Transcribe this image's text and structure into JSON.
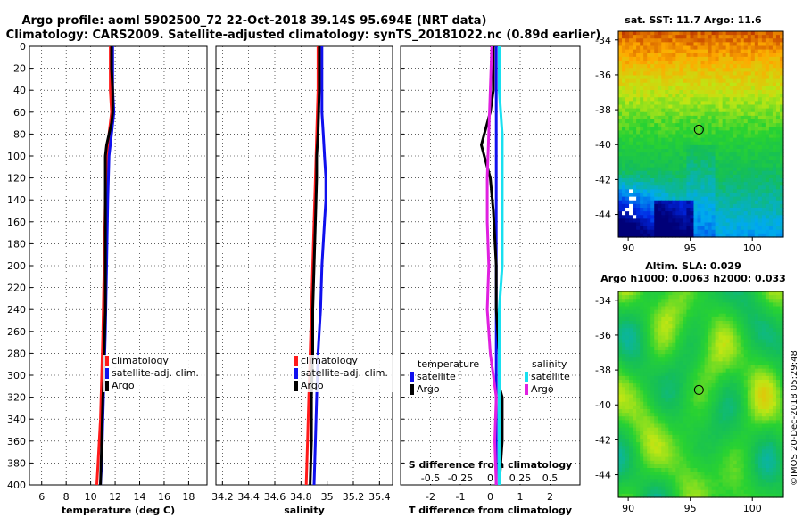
{
  "header": {
    "line1": "Argo profile: aoml 5902500_72 22-Oct-2018 39.14S 95.694E (NRT data)",
    "line2": "Climatology: CARS2009. Satellite-adjusted climatology: synTS_20181022.nc (0.89d earlier)"
  },
  "colors": {
    "climatology": "#ff1a1a",
    "satellite_adj": "#1010ee",
    "argo": "#000000",
    "sal_satellite": "#18e0f0",
    "sal_argo": "#e020e0"
  },
  "depth_axis": {
    "ticks": [
      "0",
      "20",
      "40",
      "60",
      "80",
      "100",
      "120",
      "140",
      "160",
      "180",
      "200",
      "220",
      "240",
      "260",
      "280",
      "300",
      "320",
      "340",
      "360",
      "380",
      "400"
    ]
  },
  "chart_data": [
    {
      "type": "line",
      "name": "temperature",
      "xlabel": "temperature (deg C)",
      "ylabel": "",
      "xlim": [
        5,
        19.5
      ],
      "ylim": [
        400,
        0
      ],
      "x_tick_values": [
        6,
        8,
        10,
        12,
        14,
        16,
        18
      ],
      "x_tick_labels": [
        "6",
        "8",
        "10",
        "12",
        "14",
        "16",
        "18"
      ],
      "legend": {
        "position": "lower-right",
        "entries": [
          "climatology",
          "satellite-adj. clim.",
          "Argo"
        ]
      },
      "series": [
        {
          "name": "climatology",
          "color": "#ff1a1a",
          "depth": [
            0,
            20,
            40,
            60,
            80,
            100,
            140,
            200,
            260,
            300,
            340,
            380,
            400
          ],
          "values": [
            11.6,
            11.6,
            11.6,
            11.7,
            11.5,
            11.3,
            11.2,
            11.1,
            11.0,
            10.9,
            10.8,
            10.6,
            10.5
          ]
        },
        {
          "name": "satellite-adj. clim.",
          "color": "#1010ee",
          "depth": [
            0,
            20,
            40,
            60,
            80,
            100,
            140,
            200,
            260,
            300,
            340,
            380,
            400
          ],
          "values": [
            11.8,
            11.8,
            11.8,
            11.9,
            11.7,
            11.5,
            11.4,
            11.3,
            11.2,
            11.1,
            11.0,
            10.9,
            10.8
          ]
        },
        {
          "name": "Argo",
          "color": "#000000",
          "depth": [
            0,
            20,
            40,
            60,
            70,
            80,
            90,
            100,
            120,
            140,
            160,
            200,
            240,
            280,
            300,
            320,
            360,
            400
          ],
          "values": [
            11.7,
            11.7,
            11.8,
            11.8,
            11.7,
            11.5,
            11.3,
            11.2,
            11.2,
            11.2,
            11.2,
            11.2,
            11.2,
            11.1,
            11.1,
            11.0,
            10.9,
            10.8
          ]
        }
      ]
    },
    {
      "type": "line",
      "name": "salinity",
      "xlabel": "salinity",
      "ylabel": "",
      "xlim": [
        34.15,
        35.5
      ],
      "ylim": [
        400,
        0
      ],
      "x_tick_values": [
        34.2,
        34.4,
        34.6,
        34.8,
        35,
        35.2,
        35.4
      ],
      "x_tick_labels": [
        "34.2",
        "34.4",
        "34.6",
        "34.8",
        "35",
        "35.2",
        "35.4"
      ],
      "legend": {
        "position": "lower-right",
        "entries": [
          "climatology",
          "satellite-adj. clim.",
          "Argo"
        ]
      },
      "series": [
        {
          "name": "climatology",
          "color": "#ff1a1a",
          "depth": [
            0,
            40,
            80,
            120,
            160,
            200,
            240,
            280,
            320,
            360,
            400
          ],
          "values": [
            34.93,
            34.93,
            34.92,
            34.91,
            34.9,
            34.89,
            34.88,
            34.87,
            34.86,
            34.85,
            34.84
          ]
        },
        {
          "name": "satellite-adj. clim.",
          "color": "#1010ee",
          "depth": [
            0,
            20,
            40,
            60,
            80,
            100,
            120,
            140,
            160,
            200,
            240,
            280,
            320,
            360,
            400
          ],
          "values": [
            34.96,
            34.96,
            34.96,
            34.96,
            34.97,
            34.98,
            34.99,
            34.99,
            34.98,
            34.96,
            34.95,
            34.93,
            34.92,
            34.91,
            34.9
          ]
        },
        {
          "name": "Argo",
          "color": "#000000",
          "depth": [
            0,
            40,
            80,
            100,
            120,
            160,
            200,
            240,
            280,
            320,
            360,
            400
          ],
          "values": [
            34.94,
            34.94,
            34.93,
            34.92,
            34.92,
            34.91,
            34.9,
            34.89,
            34.89,
            34.88,
            34.88,
            34.87
          ]
        }
      ]
    },
    {
      "type": "line",
      "name": "difference from climatology",
      "xlabel": "T difference from climatology",
      "ylabel": "",
      "xlim": [
        -3,
        3
      ],
      "ylim": [
        400,
        0
      ],
      "x_tick_values": [
        -2,
        -1,
        0,
        1,
        2
      ],
      "x_tick_labels": [
        "-2",
        "-1",
        "0",
        "1",
        "2"
      ],
      "x2label": "S difference from climatology",
      "x2_tick_values": [
        -2,
        -1,
        0,
        1,
        2
      ],
      "x2_tick_labels": [
        "-0.5",
        "-0.25",
        "0",
        "0.25",
        "0.5"
      ],
      "legend": {
        "position": "lower-right",
        "temperature_title": "temperature",
        "salinity_title": "salinity",
        "entries": [
          "satellite",
          "Argo",
          "satellite",
          "Argo"
        ]
      },
      "series": [
        {
          "name": "temperature satellite",
          "color": "#1010ee",
          "depth": [
            0,
            60,
            100,
            160,
            200,
            240,
            280,
            320,
            360,
            400
          ],
          "values": [
            0.2,
            0.2,
            0.2,
            0.2,
            0.2,
            0.2,
            0.2,
            0.2,
            0.2,
            0.2
          ]
        },
        {
          "name": "temperature Argo",
          "color": "#000000",
          "depth": [
            0,
            40,
            60,
            70,
            80,
            90,
            100,
            120,
            150,
            200,
            240,
            280,
            300,
            310,
            320,
            360,
            400
          ],
          "values": [
            0.1,
            0.1,
            0.0,
            -0.1,
            -0.2,
            -0.3,
            -0.2,
            0.0,
            0.1,
            0.2,
            0.2,
            0.3,
            0.3,
            0.3,
            0.4,
            0.4,
            0.3
          ]
        },
        {
          "name": "salinity satellite",
          "color": "#18e0f0",
          "depth": [
            0,
            40,
            80,
            120,
            160,
            200,
            240,
            280,
            320,
            360,
            400
          ],
          "values": [
            0.3,
            0.3,
            0.4,
            0.4,
            0.4,
            0.4,
            0.3,
            0.3,
            0.3,
            0.3,
            0.3
          ]
        },
        {
          "name": "salinity Argo",
          "color": "#e020e0",
          "depth": [
            0,
            40,
            80,
            120,
            160,
            200,
            240,
            280,
            300,
            320,
            360,
            400
          ],
          "values": [
            0.05,
            0.0,
            -0.05,
            -0.1,
            -0.1,
            -0.05,
            -0.1,
            0.0,
            0.1,
            0.2,
            0.15,
            0.2
          ]
        }
      ]
    },
    {
      "type": "heatmap",
      "name": "sst map",
      "title": "sat. SST: 11.7 Argo: 11.6",
      "x_tick_labels": [
        "90",
        "95",
        "100"
      ],
      "y_tick_labels": [
        "-34",
        "-36",
        "-38",
        "-40",
        "-42",
        "-44"
      ],
      "xlim": [
        89.2,
        102.5
      ],
      "ylim": [
        -45.3,
        -33.5
      ],
      "argo_position": {
        "lon": 95.694,
        "lat": -39.14
      }
    },
    {
      "type": "heatmap",
      "name": "sla map",
      "title_line1": "Altim. SLA: 0.029",
      "title_line2": "Argo h1000: 0.0063 h2000: 0.033",
      "x_tick_labels": [
        "90",
        "95",
        "100"
      ],
      "y_tick_labels": [
        "-34",
        "-36",
        "-38",
        "-40",
        "-42",
        "-44"
      ],
      "xlim": [
        89.2,
        102.5
      ],
      "ylim": [
        -45.3,
        -33.5
      ],
      "argo_position": {
        "lon": 95.694,
        "lat": -39.14
      }
    }
  ],
  "footer": {
    "watermark": "©IMOS 20-Dec-2018 05:29:48"
  }
}
